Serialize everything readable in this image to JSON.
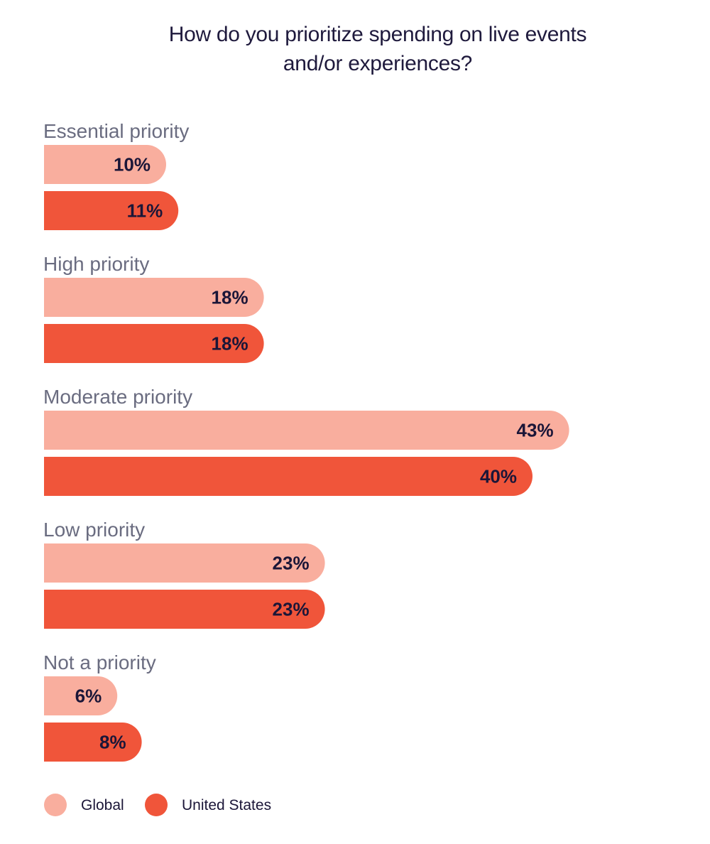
{
  "chart_data": {
    "type": "bar",
    "orientation": "horizontal",
    "title_lines": [
      "How do you prioritize spending on live events",
      "and/or experiences?"
    ],
    "categories": [
      "Essential priority",
      "High priority",
      "Moderate priority",
      "Low priority",
      "Not a priority"
    ],
    "series": [
      {
        "name": "Global",
        "color": "#f9ae9e",
        "values": [
          10,
          18,
          43,
          23,
          6
        ],
        "labels": [
          "10%",
          "18%",
          "43%",
          "23%",
          "6%"
        ]
      },
      {
        "name": "United States",
        "color": "#f0553a",
        "values": [
          11,
          18,
          40,
          23,
          8
        ],
        "labels": [
          "11%",
          "18%",
          "40%",
          "23%",
          "8%"
        ]
      }
    ],
    "unit": "%",
    "legend_position": "bottom-left",
    "grid": false
  }
}
